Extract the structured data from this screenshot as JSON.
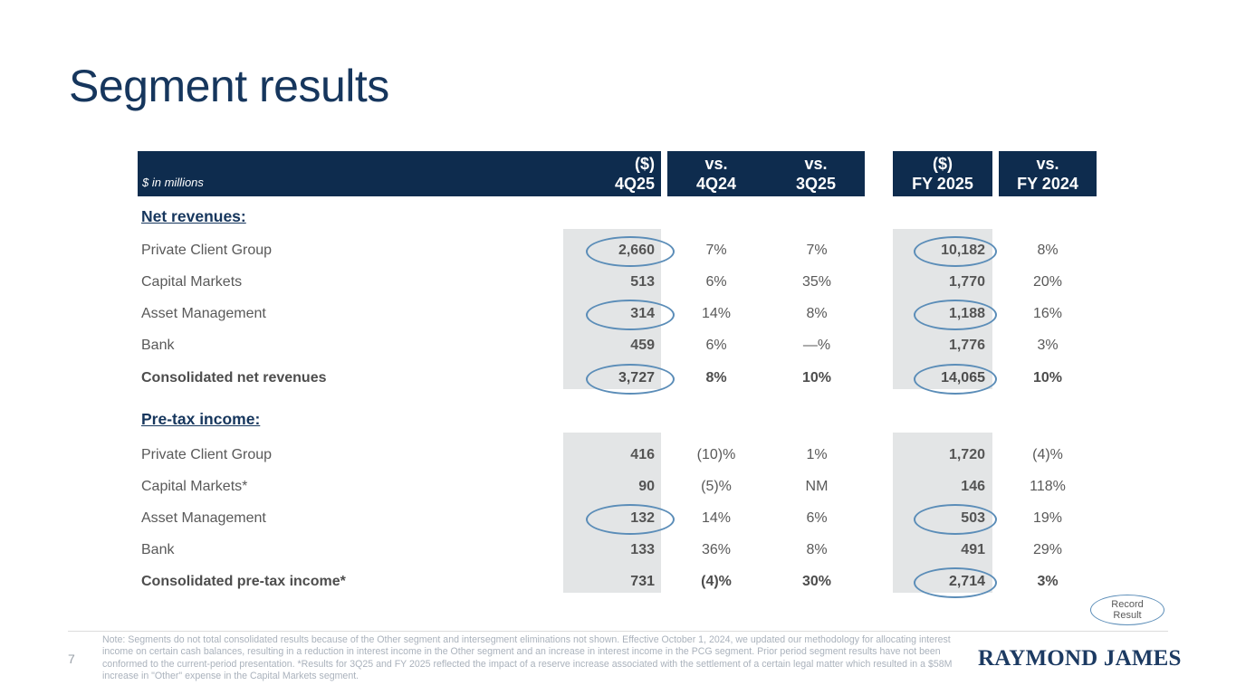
{
  "title": "Segment results",
  "page_number": "7",
  "logo": "RAYMOND JAMES",
  "colors": {
    "navy": "#0e2c4e",
    "title": "#16365d",
    "band": "#e3e5e6",
    "oval": "#5b8db8",
    "text": "#595959",
    "note": "#aab2bc",
    "logo": "#1c3a62"
  },
  "table": {
    "unit_label": "$ in millions",
    "header": {
      "q25_top": "($)",
      "q25_bot": "4Q25",
      "vs4q24_top": "vs.",
      "vs4q24_bot": "4Q24",
      "vs3q25_top": "vs.",
      "vs3q25_bot": "3Q25",
      "fy25_top": "($)",
      "fy25_bot": "FY 2025",
      "vsfy24_top": "vs.",
      "vsfy24_bot": "FY 2024"
    },
    "sections": [
      {
        "heading": "Net revenues:",
        "rows": [
          {
            "label": "Private Client Group",
            "q25": "2,660",
            "vs_4q24": "7%",
            "vs_3q25": "7%",
            "fy25": "10,182",
            "vs_fy24": "8%",
            "bold": false,
            "circle_q25": true,
            "circle_fy25": true
          },
          {
            "label": "Capital Markets",
            "q25": "513",
            "vs_4q24": "6%",
            "vs_3q25": "35%",
            "fy25": "1,770",
            "vs_fy24": "20%",
            "bold": false,
            "circle_q25": false,
            "circle_fy25": false
          },
          {
            "label": "Asset Management",
            "q25": "314",
            "vs_4q24": "14%",
            "vs_3q25": "8%",
            "fy25": "1,188",
            "vs_fy24": "16%",
            "bold": false,
            "circle_q25": true,
            "circle_fy25": true
          },
          {
            "label": "Bank",
            "q25": "459",
            "vs_4q24": "6%",
            "vs_3q25": "—%",
            "fy25": "1,776",
            "vs_fy24": "3%",
            "bold": false,
            "circle_q25": false,
            "circle_fy25": false
          },
          {
            "label": "Consolidated net revenues",
            "q25": "3,727",
            "vs_4q24": "8%",
            "vs_3q25": "10%",
            "fy25": "14,065",
            "vs_fy24": "10%",
            "bold": true,
            "circle_q25": true,
            "circle_fy25": true
          }
        ]
      },
      {
        "heading": "Pre-tax income:",
        "rows": [
          {
            "label": "Private Client Group",
            "q25": "416",
            "vs_4q24": "(10)%",
            "vs_3q25": "1%",
            "fy25": "1,720",
            "vs_fy24": "(4)%",
            "bold": false,
            "circle_q25": false,
            "circle_fy25": false
          },
          {
            "label": "Capital Markets*",
            "q25": "90",
            "vs_4q24": "(5)%",
            "vs_3q25": "NM",
            "fy25": "146",
            "vs_fy24": "118%",
            "bold": false,
            "circle_q25": false,
            "circle_fy25": false
          },
          {
            "label": "Asset Management",
            "q25": "132",
            "vs_4q24": "14%",
            "vs_3q25": "6%",
            "fy25": "503",
            "vs_fy24": "19%",
            "bold": false,
            "circle_q25": true,
            "circle_fy25": true
          },
          {
            "label": "Bank",
            "q25": "133",
            "vs_4q24": "36%",
            "vs_3q25": "8%",
            "fy25": "491",
            "vs_fy24": "29%",
            "bold": false,
            "circle_q25": false,
            "circle_fy25": false
          },
          {
            "label": "Consolidated pre-tax income*",
            "q25": "731",
            "vs_4q24": "(4)%",
            "vs_3q25": "30%",
            "fy25": "2,714",
            "vs_fy24": "3%",
            "bold": true,
            "circle_q25": false,
            "circle_fy25": true
          }
        ]
      }
    ]
  },
  "badge": {
    "line1": "Record",
    "line2": "Result"
  },
  "note": "Note: Segments do not total consolidated results because of the Other segment and intersegment eliminations not shown.  Effective October 1, 2024, we updated our methodology for allocating interest income on certain cash balances, resulting in a reduction in interest income in the Other segment and an increase in interest income in the PCG segment.  Prior period segment results have not been conformed to the current-period presentation. *Results for 3Q25 and FY 2025 reflected the impact of a reserve increase associated with the settlement of a certain legal matter which resulted in a $58M increase in \"Other\" expense in the Capital Markets segment."
}
